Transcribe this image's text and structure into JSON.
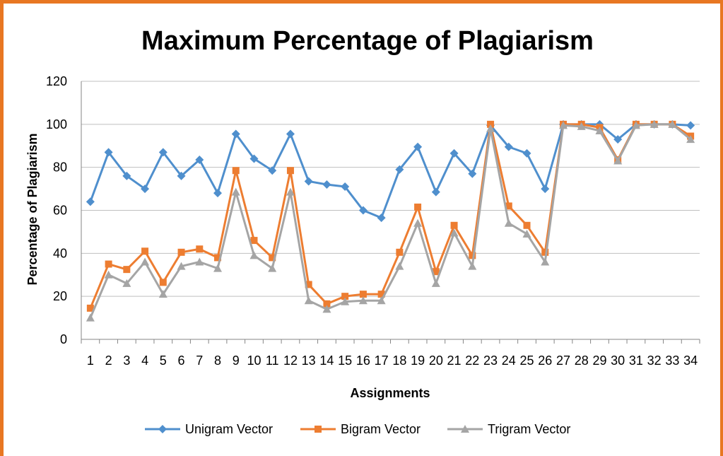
{
  "chart_data": {
    "type": "line",
    "title": "Maximum Percentage of Plagiarism",
    "xlabel": "Assignments",
    "ylabel": "Percentage of Plagiarism",
    "ylim": [
      0,
      120
    ],
    "yticks": [
      "0",
      "20",
      "40",
      "60",
      "80",
      "100",
      "120"
    ],
    "categories": [
      "1",
      "2",
      "3",
      "4",
      "5",
      "6",
      "7",
      "8",
      "9",
      "10",
      "11",
      "12",
      "13",
      "14",
      "15",
      "16",
      "17",
      "18",
      "19",
      "20",
      "21",
      "22",
      "23",
      "24",
      "25",
      "26",
      "27",
      "28",
      "29",
      "30",
      "31",
      "32",
      "33",
      "34"
    ],
    "grid": true,
    "legend": "bottom",
    "series": [
      {
        "name": "Unigram Vector",
        "color": "#4F8FCD",
        "marker": "diamond",
        "values": [
          64,
          87,
          76,
          70,
          87,
          76,
          83.5,
          68,
          95.5,
          84,
          78.5,
          95.5,
          73.5,
          72,
          71,
          60,
          56.5,
          79,
          89.5,
          68.5,
          86.5,
          77,
          99.5,
          89.5,
          86.5,
          70,
          100,
          100,
          100,
          93,
          100,
          100,
          100,
          99.5
        ]
      },
      {
        "name": "Bigram Vector",
        "color": "#ED7D31",
        "marker": "square",
        "values": [
          14.5,
          35,
          32.5,
          41,
          26.5,
          40.5,
          42,
          38,
          78.5,
          46,
          38,
          78.5,
          25.5,
          16.5,
          20,
          21,
          21,
          40.5,
          61.5,
          31.5,
          53,
          39,
          100,
          62,
          53,
          40.5,
          100,
          100,
          98.5,
          83.5,
          100,
          100,
          100,
          94.5
        ]
      },
      {
        "name": "Trigram Vector",
        "color": "#A5A5A5",
        "marker": "triangle",
        "values": [
          10,
          30,
          26,
          36,
          21,
          34,
          36,
          33,
          68.5,
          39,
          33,
          68.5,
          18,
          14,
          17.5,
          18,
          18,
          34,
          54,
          26,
          49.5,
          34,
          98,
          54,
          49,
          36,
          99.5,
          99,
          97,
          83,
          99.5,
          100,
          100,
          93
        ]
      }
    ]
  }
}
